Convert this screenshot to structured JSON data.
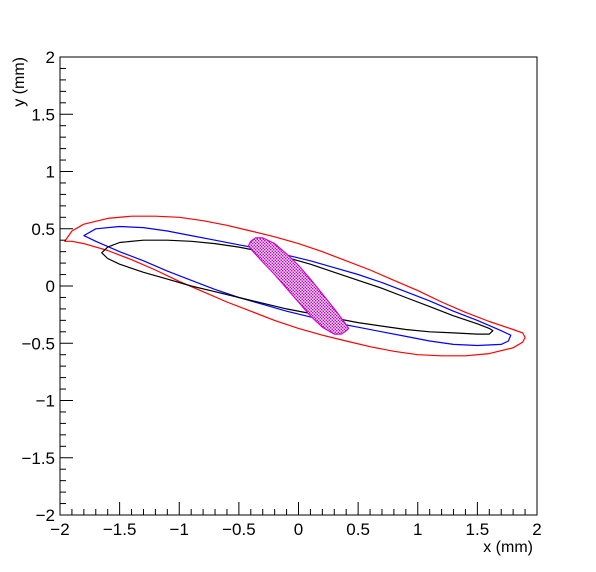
{
  "chart_data": {
    "type": "line",
    "title": "",
    "xlabel": "x (mm)",
    "ylabel": "y (mm)",
    "xlim": [
      -2,
      2
    ],
    "ylim": [
      -2,
      2
    ],
    "xticks": [
      -2,
      -1.5,
      -1,
      -0.5,
      0,
      0.5,
      1,
      1.5,
      2
    ],
    "yticks": [
      -2,
      -1.5,
      -1,
      -0.5,
      0,
      0.5,
      1,
      1.5,
      2
    ],
    "xtick_labels": [
      "−2",
      "−1.5",
      "−1",
      "−0.5",
      "0",
      "0.5",
      "1",
      "1.5",
      "2"
    ],
    "ytick_labels": [
      "−2",
      "−1.5",
      "−1",
      "−0.5",
      "0",
      "0.5",
      "1",
      "1.5",
      "2"
    ],
    "grid": false,
    "legend": "none",
    "series": [
      {
        "color": "#ff0000",
        "fill": "none",
        "x": [
          -1.96,
          -1.9,
          -1.8,
          -1.6,
          -1.4,
          -1.2,
          -1.0,
          -0.8,
          -0.6,
          -0.4,
          -0.2,
          0.0,
          0.2,
          0.4,
          0.6,
          0.8,
          1.0,
          1.2,
          1.4,
          1.6,
          1.8,
          1.88,
          1.9,
          1.88,
          1.8,
          1.6,
          1.4,
          1.2,
          1.0,
          0.8,
          0.6,
          0.4,
          0.2,
          0.0,
          -0.2,
          -0.4,
          -0.6,
          -0.8,
          -1.0,
          -1.2,
          -1.4,
          -1.6,
          -1.8,
          -1.9,
          -1.96
        ],
        "y": [
          0.39,
          0.48,
          0.54,
          0.59,
          0.61,
          0.61,
          0.6,
          0.57,
          0.53,
          0.48,
          0.43,
          0.37,
          0.3,
          0.22,
          0.14,
          0.05,
          -0.04,
          -0.14,
          -0.23,
          -0.31,
          -0.38,
          -0.41,
          -0.45,
          -0.49,
          -0.54,
          -0.59,
          -0.61,
          -0.61,
          -0.6,
          -0.57,
          -0.53,
          -0.48,
          -0.43,
          -0.37,
          -0.3,
          -0.22,
          -0.14,
          -0.05,
          0.04,
          0.14,
          0.23,
          0.31,
          0.37,
          0.39,
          0.39
        ]
      },
      {
        "color": "#0000ff",
        "fill": "none",
        "x": [
          -1.8,
          -1.7,
          -1.5,
          -1.3,
          -1.1,
          -0.9,
          -0.7,
          -0.5,
          -0.3,
          -0.1,
          0.1,
          0.3,
          0.5,
          0.7,
          0.9,
          1.1,
          1.3,
          1.5,
          1.7,
          1.78,
          1.76,
          1.7,
          1.5,
          1.3,
          1.1,
          0.9,
          0.7,
          0.5,
          0.3,
          0.1,
          -0.1,
          -0.3,
          -0.5,
          -0.7,
          -0.9,
          -1.1,
          -1.3,
          -1.5,
          -1.7,
          -1.8
        ],
        "y": [
          0.44,
          0.5,
          0.52,
          0.51,
          0.48,
          0.44,
          0.4,
          0.36,
          0.32,
          0.27,
          0.22,
          0.16,
          0.1,
          0.03,
          -0.05,
          -0.13,
          -0.22,
          -0.3,
          -0.39,
          -0.43,
          -0.48,
          -0.51,
          -0.52,
          -0.51,
          -0.48,
          -0.44,
          -0.4,
          -0.36,
          -0.32,
          -0.27,
          -0.22,
          -0.16,
          -0.1,
          -0.03,
          0.05,
          0.13,
          0.22,
          0.3,
          0.39,
          0.44
        ]
      },
      {
        "color": "#000000",
        "fill": "none",
        "x": [
          -1.65,
          -1.6,
          -1.5,
          -1.3,
          -1.1,
          -0.9,
          -0.7,
          -0.5,
          -0.3,
          -0.1,
          0.1,
          0.3,
          0.5,
          0.7,
          0.9,
          1.1,
          1.3,
          1.5,
          1.6,
          1.63,
          1.6,
          1.5,
          1.3,
          1.1,
          0.9,
          0.7,
          0.5,
          0.3,
          0.1,
          -0.1,
          -0.3,
          -0.5,
          -0.7,
          -0.9,
          -1.1,
          -1.3,
          -1.5,
          -1.6,
          -1.65
        ],
        "y": [
          0.29,
          0.34,
          0.38,
          0.4,
          0.4,
          0.39,
          0.37,
          0.34,
          0.3,
          0.25,
          0.19,
          0.12,
          0.05,
          -0.02,
          -0.1,
          -0.18,
          -0.26,
          -0.33,
          -0.37,
          -0.39,
          -0.42,
          -0.42,
          -0.41,
          -0.4,
          -0.38,
          -0.35,
          -0.32,
          -0.28,
          -0.24,
          -0.2,
          -0.15,
          -0.1,
          -0.05,
          0.0,
          0.06,
          0.12,
          0.19,
          0.24,
          0.29
        ]
      },
      {
        "color": "#cc00cc",
        "fill": "hatched",
        "x": [
          -0.4,
          -0.36,
          -0.3,
          -0.2,
          -0.1,
          0.0,
          0.1,
          0.2,
          0.3,
          0.38,
          0.42,
          0.4,
          0.36,
          0.3,
          0.2,
          0.1,
          0.0,
          -0.1,
          -0.2,
          -0.3,
          -0.38,
          -0.42,
          -0.4
        ],
        "y": [
          0.39,
          0.42,
          0.42,
          0.37,
          0.28,
          0.18,
          0.06,
          -0.07,
          -0.2,
          -0.31,
          -0.37,
          -0.39,
          -0.42,
          -0.42,
          -0.36,
          -0.26,
          -0.14,
          -0.02,
          0.1,
          0.21,
          0.3,
          0.35,
          0.39
        ]
      }
    ]
  }
}
